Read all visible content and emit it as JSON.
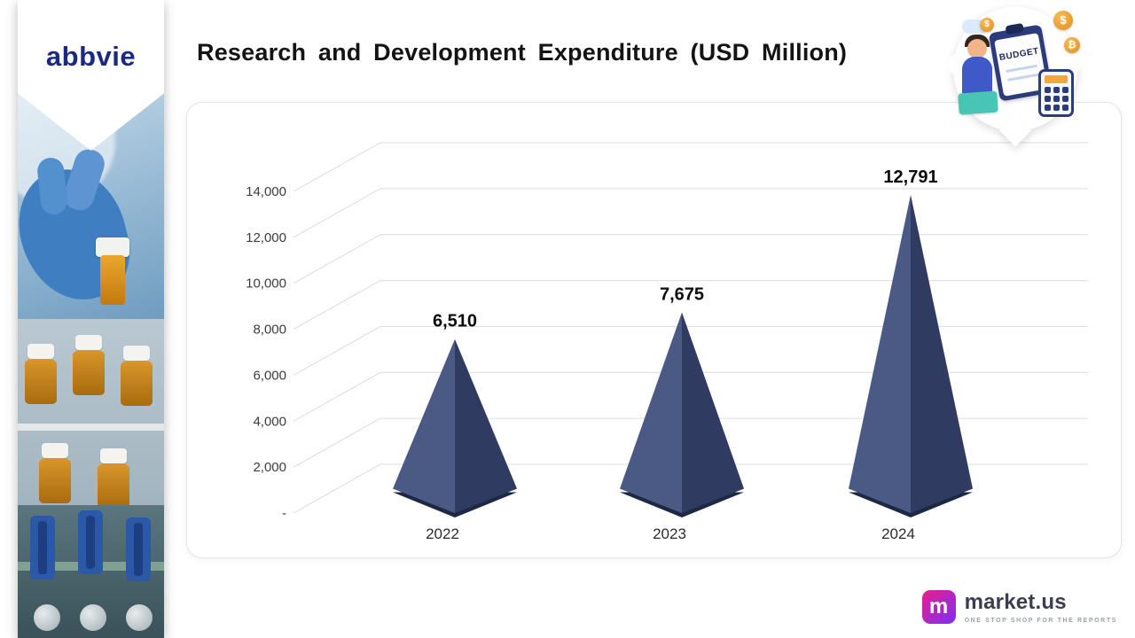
{
  "brand": {
    "name": "abbvie"
  },
  "header": {
    "title": "Research and Development Expenditure (USD Million)"
  },
  "badge": {
    "label": "BUDGET",
    "coin1": "$",
    "coin2": "₿",
    "coin3": "$"
  },
  "footer": {
    "brand": "market.us",
    "tagline": "ONE STOP SHOP FOR THE REPORTS",
    "mark": "m"
  },
  "chart_data": {
    "type": "bar",
    "variant": "3d-pyramid",
    "title": "Research and Development Expenditure (USD Million)",
    "categories": [
      "2022",
      "2023",
      "2024"
    ],
    "values": [
      6510,
      7675,
      12791
    ],
    "value_labels": [
      "6,510",
      "7,675",
      "12,791"
    ],
    "xlabel": "",
    "ylabel": "",
    "ylim": [
      0,
      14000
    ],
    "y_ticks": [
      {
        "value": 0,
        "label": "-"
      },
      {
        "value": 2000,
        "label": "2,000"
      },
      {
        "value": 4000,
        "label": "4,000"
      },
      {
        "value": 6000,
        "label": "6,000"
      },
      {
        "value": 8000,
        "label": "8,000"
      },
      {
        "value": 10000,
        "label": "10,000"
      },
      {
        "value": 12000,
        "label": "12,000"
      },
      {
        "value": 14000,
        "label": "14,000"
      }
    ],
    "grid": true,
    "legend": "none",
    "colors": {
      "pyramid_left": "#4a5a85",
      "pyramid_right": "#2f3b60",
      "pyramid_base": "#1d2844",
      "gridline": "#dcdcdc",
      "value_label": "#0b0b0b",
      "tick_label": "#3d3d3d",
      "category_label": "#2c2c2c"
    }
  }
}
